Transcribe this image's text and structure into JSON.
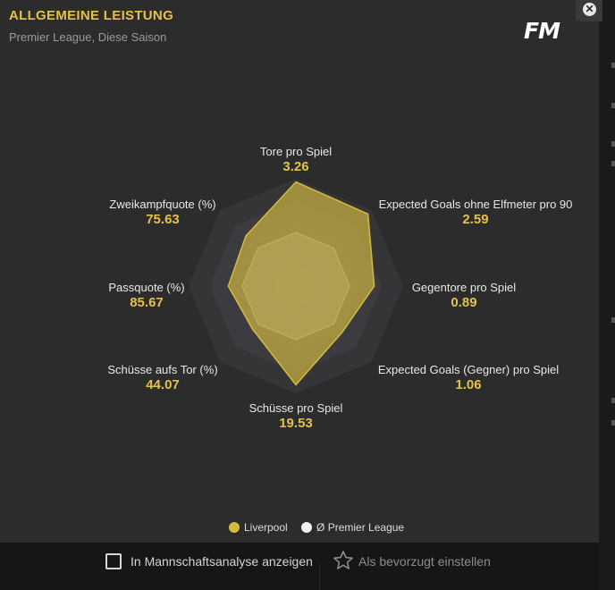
{
  "header": {
    "title": "ALLGEMEINE LEISTUNG",
    "subtitle": "Premier League, Diese Saison",
    "logo": "FM",
    "close_icon": "close-icon"
  },
  "chart_data": {
    "type": "radar",
    "axes": [
      {
        "name": "Tore pro Spiel",
        "value_label": "3.26"
      },
      {
        "name": "Expected Goals ohne Elfmeter pro 90",
        "value_label": "2.59"
      },
      {
        "name": "Gegentore pro Spiel",
        "value_label": "0.89"
      },
      {
        "name": "Expected Goals (Gegner) pro Spiel",
        "value_label": "1.06"
      },
      {
        "name": "Schüsse pro Spiel",
        "value_label": "19.53"
      },
      {
        "name": "Schüsse aufs Tor (%)",
        "value_label": "44.07"
      },
      {
        "name": "Passquote (%)",
        "value_label": "85.67"
      },
      {
        "name": "Zweikampfquote (%)",
        "value_label": "75.63"
      }
    ],
    "scale_max": 1,
    "rings": 5,
    "series": [
      {
        "name": "Ø Premier League",
        "color": "#dcdcdc",
        "values": [
          0.5,
          0.5,
          0.5,
          0.5,
          0.5,
          0.5,
          0.5,
          0.5
        ]
      },
      {
        "name": "Liverpool",
        "color": "#c8b040",
        "values": [
          0.97,
          0.95,
          0.73,
          0.61,
          0.92,
          0.57,
          0.63,
          0.66
        ]
      }
    ],
    "legend_position": "bottom-center"
  },
  "legend": [
    {
      "label": "Liverpool",
      "color": "#d4bb42"
    },
    {
      "label": "Ø Premier League",
      "color": "#f2f2f2"
    }
  ],
  "footer": {
    "checkbox_label": "In Mannschaftsanalyse anzeigen",
    "checkbox_checked": false,
    "favorite_label": "Als bevorzugt einstellen",
    "favorite_icon": "star-icon"
  }
}
